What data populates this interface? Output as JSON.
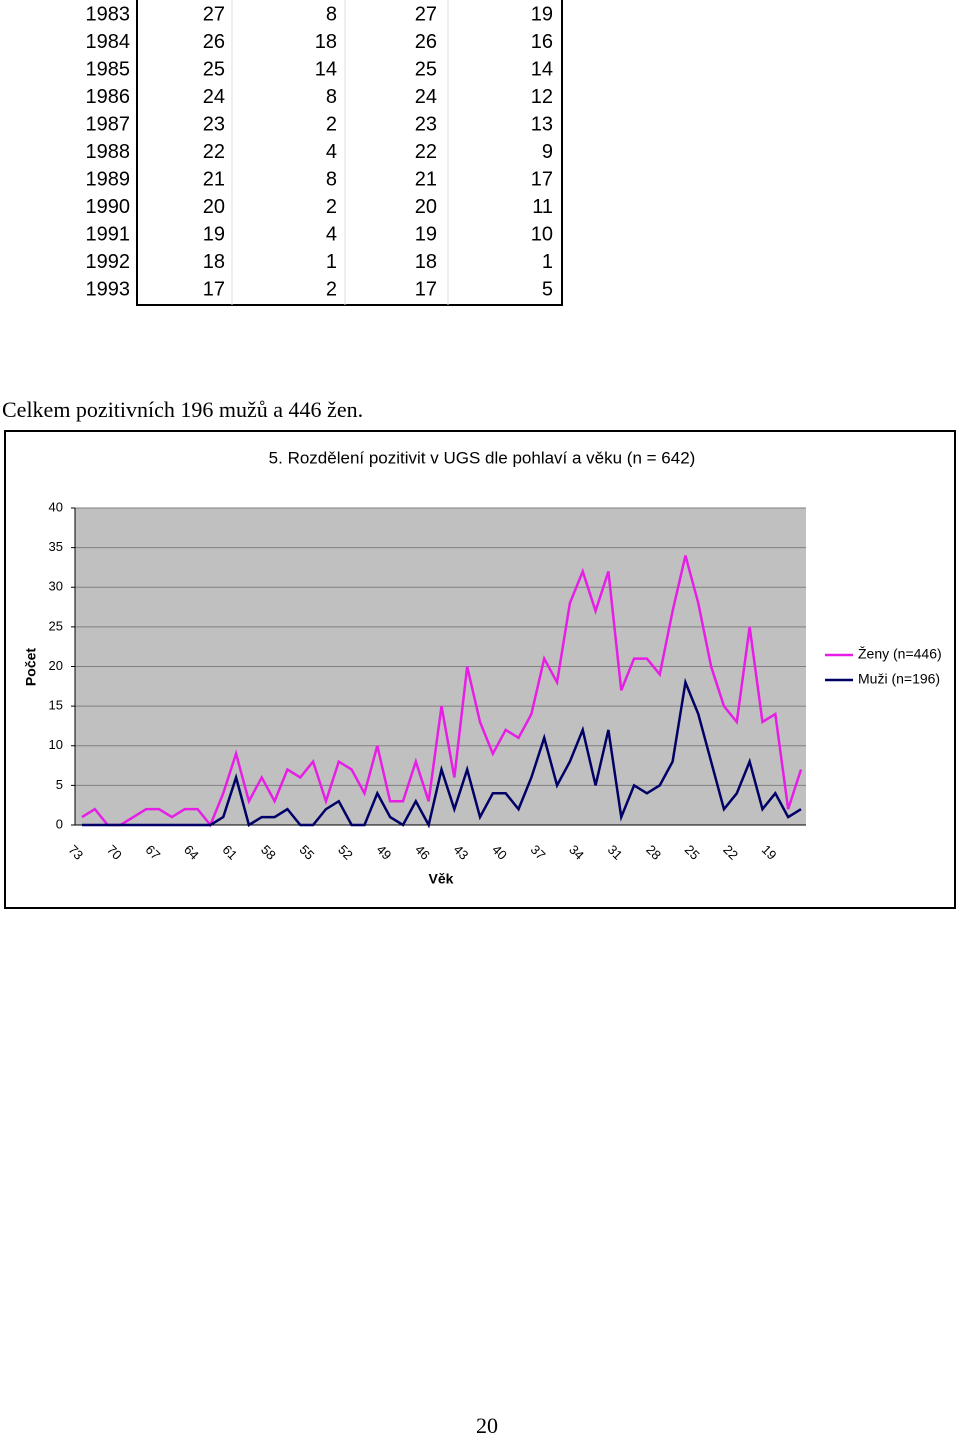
{
  "table": {
    "rows": [
      [
        1983,
        27,
        8,
        27,
        19
      ],
      [
        1984,
        26,
        18,
        26,
        16
      ],
      [
        1985,
        25,
        14,
        25,
        14
      ],
      [
        1986,
        24,
        8,
        24,
        12
      ],
      [
        1987,
        23,
        2,
        23,
        13
      ],
      [
        1988,
        22,
        4,
        22,
        9
      ],
      [
        1989,
        21,
        8,
        21,
        17
      ],
      [
        1990,
        20,
        2,
        20,
        11
      ],
      [
        1991,
        19,
        4,
        19,
        10
      ],
      [
        1992,
        18,
        1,
        18,
        1
      ],
      [
        1993,
        17,
        2,
        17,
        5
      ]
    ]
  },
  "summary": "Celkem pozitivních 196 mužů a 446 žen.",
  "chart_data": {
    "type": "line",
    "title": "5. Rozdělení pozitivit v UGS dle pohlaví a věku (n = 642)",
    "x_label": "Věk",
    "y_label": "Počet",
    "categories": [
      73,
      null,
      null,
      70,
      null,
      null,
      67,
      null,
      null,
      64,
      null,
      null,
      61,
      null,
      null,
      58,
      null,
      null,
      55,
      null,
      null,
      52,
      null,
      null,
      49,
      null,
      null,
      46,
      null,
      null,
      43,
      null,
      null,
      40,
      null,
      null,
      37,
      null,
      null,
      34,
      null,
      null,
      31,
      null,
      null,
      28,
      null,
      null,
      25,
      null,
      null,
      22,
      null,
      null,
      19,
      null,
      null
    ],
    "series": [
      {
        "name": "Ženy (n=446)",
        "color": "#e61ee6",
        "values": [
          1,
          2,
          0,
          0,
          1,
          2,
          2,
          1,
          2,
          2,
          0,
          4,
          9,
          3,
          6,
          3,
          7,
          6,
          8,
          3,
          8,
          7,
          4,
          10,
          3,
          3,
          8,
          3,
          15,
          6,
          20,
          13,
          9,
          12,
          11,
          14,
          21,
          18,
          28,
          32,
          27,
          32,
          17,
          21,
          21,
          19,
          27,
          34,
          28,
          20,
          15,
          13,
          25,
          13,
          14,
          2,
          7
        ]
      },
      {
        "name": "Muži (n=196)",
        "color": "#000066",
        "values": [
          0,
          0,
          0,
          0,
          0,
          0,
          0,
          0,
          0,
          0,
          0,
          1,
          6,
          0,
          1,
          1,
          2,
          0,
          0,
          2,
          3,
          0,
          0,
          4,
          1,
          0,
          3,
          0,
          7,
          2,
          7,
          1,
          4,
          4,
          2,
          6,
          11,
          5,
          8,
          12,
          5,
          12,
          1,
          5,
          4,
          5,
          8,
          18,
          14,
          8,
          2,
          4,
          8,
          2,
          4,
          1,
          2
        ]
      }
    ],
    "ylim": [
      0,
      40
    ],
    "yticks": [
      0,
      5,
      10,
      15,
      20,
      25,
      30,
      35,
      40
    ],
    "grid": true,
    "legend": "right"
  },
  "page_number": "20"
}
